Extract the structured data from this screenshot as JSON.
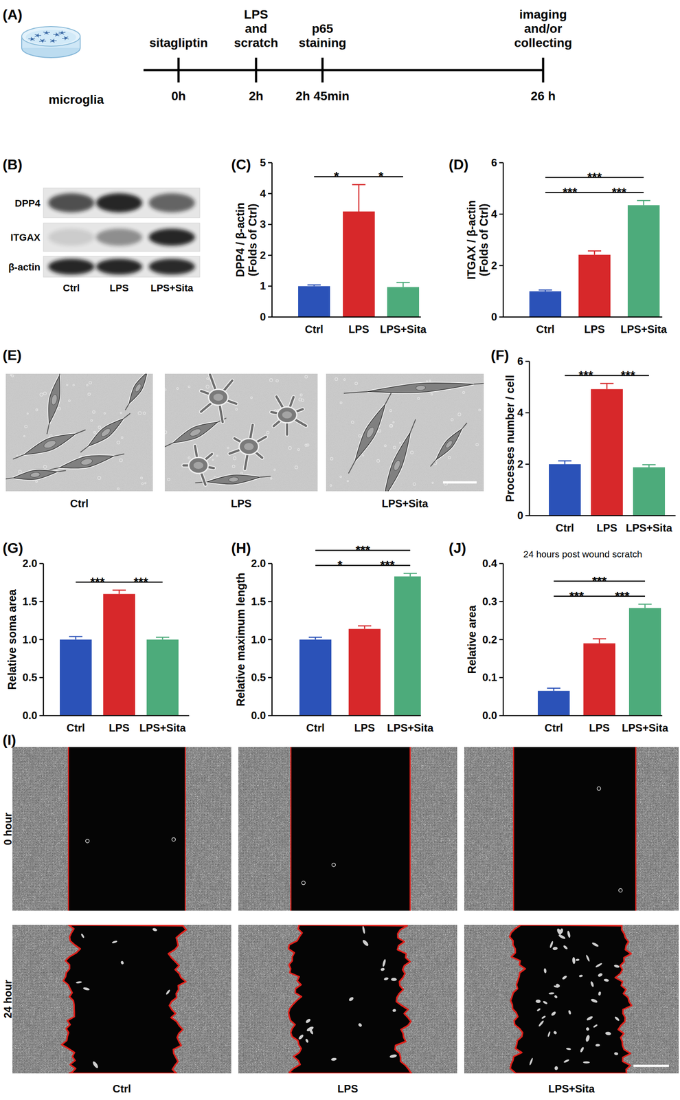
{
  "timeline": {
    "panel": "(A)",
    "dish_label": "microglia",
    "events": [
      {
        "above": [
          "sitagliptin"
        ],
        "below": "0h"
      },
      {
        "above": [
          "LPS",
          "and",
          "scratch"
        ],
        "below": "2h"
      },
      {
        "above": [
          "p65",
          "staining"
        ],
        "below": "2h 45min"
      },
      {
        "above": [
          "imaging",
          "and/or",
          "collecting"
        ],
        "below": "26 h"
      }
    ]
  },
  "blot": {
    "panel": "(B)",
    "rows": [
      "DPP4",
      "ITGAX",
      "β-actin"
    ],
    "lanes": [
      "Ctrl",
      "LPS",
      "LPS+Sita"
    ]
  },
  "micrographs": {
    "panel": "(E)",
    "panels": [
      "Ctrl",
      "LPS",
      "LPS+Sita"
    ]
  },
  "scratch": {
    "panel": "(I)",
    "rows": [
      "0 hour",
      "24 hour"
    ],
    "columns": [
      "Ctrl",
      "LPS",
      "LPS+Sita"
    ]
  },
  "chart_data": [
    {
      "panel": "(C)",
      "type": "bar",
      "y_label": [
        "DPP4 / β-actin",
        "(Folds of Ctrl)"
      ],
      "categories": [
        "Ctrl",
        "LPS",
        "LPS+Sita"
      ],
      "values": [
        1.0,
        3.42,
        0.97
      ],
      "errors": [
        0.04,
        0.87,
        0.15
      ],
      "colors": [
        "#2b52b8",
        "#d7282a",
        "#4dab7b"
      ],
      "ylim": [
        0,
        5
      ],
      "yticks": [
        0,
        1,
        2,
        3,
        4,
        5
      ],
      "significance": [
        {
          "pair": [
            "Ctrl",
            "LPS"
          ],
          "label": "*"
        },
        {
          "pair": [
            "LPS",
            "LPS+Sita"
          ],
          "label": "*"
        }
      ]
    },
    {
      "panel": "(D)",
      "type": "bar",
      "y_label": [
        "ITGAX / β-actin",
        "(Folds of Ctrl)"
      ],
      "categories": [
        "Ctrl",
        "LPS",
        "LPS+Sita"
      ],
      "values": [
        1.0,
        2.42,
        4.35
      ],
      "errors": [
        0.05,
        0.15,
        0.18
      ],
      "colors": [
        "#2b52b8",
        "#d7282a",
        "#4dab7b"
      ],
      "ylim": [
        0,
        6
      ],
      "yticks": [
        0,
        2,
        4,
        6
      ],
      "significance": [
        {
          "pair": [
            "Ctrl",
            "LPS+Sita"
          ],
          "label": "***"
        },
        {
          "pair": [
            "Ctrl",
            "LPS"
          ],
          "label": "***"
        },
        {
          "pair": [
            "LPS",
            "LPS+Sita"
          ],
          "label": "***"
        }
      ]
    },
    {
      "panel": "(F)",
      "type": "bar",
      "y_label": [
        "Processes number / cell"
      ],
      "categories": [
        "Ctrl",
        "LPS",
        "LPS+Sita"
      ],
      "values": [
        2.0,
        4.92,
        1.88
      ],
      "errors": [
        0.13,
        0.22,
        0.1
      ],
      "colors": [
        "#2b52b8",
        "#d7282a",
        "#4dab7b"
      ],
      "ylim": [
        0,
        6
      ],
      "yticks": [
        0,
        2,
        4,
        6
      ],
      "significance": [
        {
          "pair": [
            "Ctrl",
            "LPS"
          ],
          "label": "***"
        },
        {
          "pair": [
            "LPS",
            "LPS+Sita"
          ],
          "label": "***"
        }
      ]
    },
    {
      "panel": "(G)",
      "type": "bar",
      "y_label": [
        "Relative soma area"
      ],
      "categories": [
        "Ctrl",
        "LPS",
        "LPS+Sita"
      ],
      "values": [
        1.0,
        1.6,
        1.0
      ],
      "errors": [
        0.04,
        0.05,
        0.03
      ],
      "colors": [
        "#2b52b8",
        "#d7282a",
        "#4dab7b"
      ],
      "ylim": [
        0,
        2
      ],
      "yticks": [
        {
          "value": 0,
          "label": "0.0"
        },
        0.5,
        {
          "value": 1,
          "label": "1.0"
        },
        1.5,
        {
          "value": 2,
          "label": "2.0"
        }
      ],
      "significance": [
        {
          "pair": [
            "Ctrl",
            "LPS"
          ],
          "label": "***"
        },
        {
          "pair": [
            "LPS",
            "LPS+Sita"
          ],
          "label": "***"
        }
      ]
    },
    {
      "panel": "(H)",
      "type": "bar",
      "y_label": [
        "Relative maximum length"
      ],
      "categories": [
        "Ctrl",
        "LPS",
        "LPS+Sita"
      ],
      "values": [
        1.0,
        1.14,
        1.83
      ],
      "errors": [
        0.03,
        0.04,
        0.04
      ],
      "colors": [
        "#2b52b8",
        "#d7282a",
        "#4dab7b"
      ],
      "ylim": [
        0,
        2
      ],
      "yticks": [
        {
          "value": 0,
          "label": "0.0"
        },
        0.5,
        {
          "value": 1,
          "label": "1.0"
        },
        1.5,
        {
          "value": 2,
          "label": "2.0"
        }
      ],
      "significance": [
        {
          "pair": [
            "Ctrl",
            "LPS+Sita"
          ],
          "label": "***"
        },
        {
          "pair": [
            "Ctrl",
            "LPS"
          ],
          "label": "*"
        },
        {
          "pair": [
            "LPS",
            "LPS+Sita"
          ],
          "label": "***"
        }
      ]
    },
    {
      "panel": "(J)",
      "type": "bar",
      "title": "24 hours post wound scratch",
      "y_label": [
        "Relative area"
      ],
      "categories": [
        "Ctrl",
        "LPS",
        "LPS+Sita"
      ],
      "values": [
        0.065,
        0.19,
        0.283
      ],
      "errors": [
        0.007,
        0.012,
        0.01
      ],
      "colors": [
        "#2b52b8",
        "#d7282a",
        "#4dab7b"
      ],
      "ylim": [
        0,
        0.4
      ],
      "yticks": [
        {
          "value": 0,
          "label": "0.0"
        },
        0.1,
        0.2,
        0.3,
        0.4
      ],
      "significance": [
        {
          "pair": [
            "Ctrl",
            "LPS+Sita"
          ],
          "label": "***"
        },
        {
          "pair": [
            "Ctrl",
            "LPS"
          ],
          "label": "***"
        },
        {
          "pair": [
            "LPS",
            "LPS+Sita"
          ],
          "label": "***"
        }
      ]
    }
  ]
}
